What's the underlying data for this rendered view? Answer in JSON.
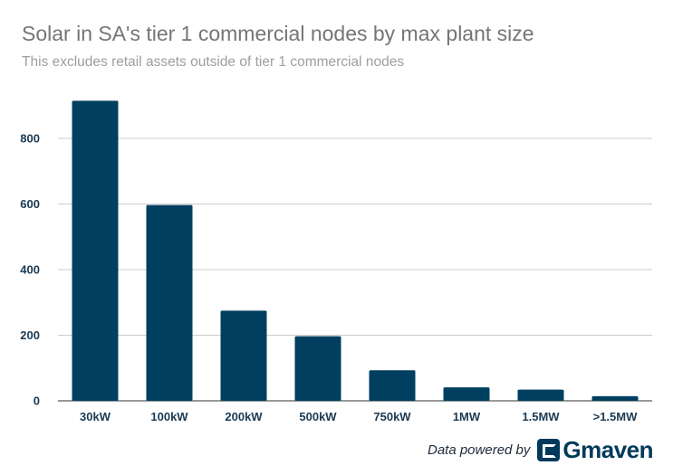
{
  "header": {
    "title": "Solar in SA's tier 1 commercial nodes by max plant size",
    "subtitle": "This excludes retail assets outside of tier 1 commercial nodes"
  },
  "footer": {
    "powered_label": "Data powered by",
    "logo_text": "Gmaven"
  },
  "chart_data": {
    "type": "bar",
    "title": "Solar in SA's tier 1 commercial nodes by max plant size",
    "subtitle": "This excludes retail assets outside of tier 1 commercial nodes",
    "categories": [
      "30kW",
      "100kW",
      "200kW",
      "500kW",
      "750kW",
      "1MW",
      "1.5MW",
      ">1.5MW"
    ],
    "values": [
      915,
      597,
      275,
      197,
      93,
      41,
      34,
      14
    ],
    "xlabel": "",
    "ylabel": "",
    "ylim": [
      0,
      960
    ],
    "yticks": [
      0,
      200,
      400,
      600,
      800
    ],
    "grid": true,
    "legend": "none",
    "bar_color": "#003f5f"
  }
}
